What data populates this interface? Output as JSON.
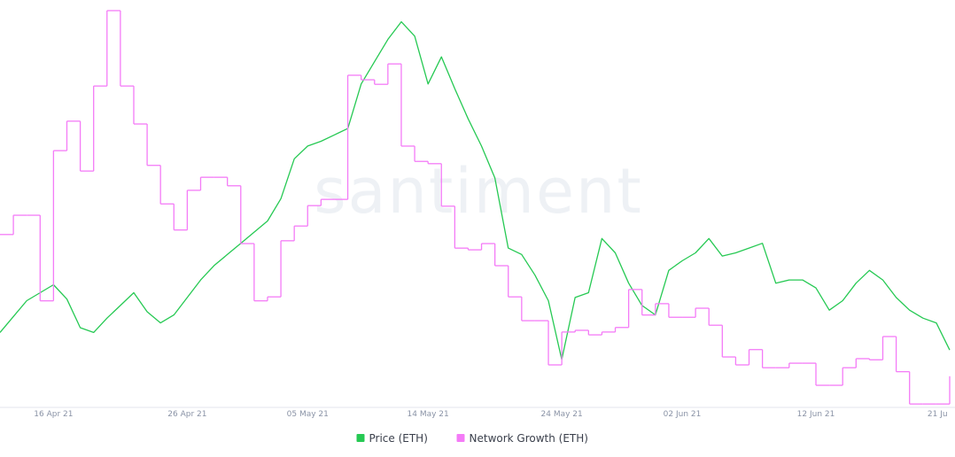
{
  "chart_data": {
    "type": "line",
    "watermark": "santiment",
    "categories": [
      null,
      null,
      null,
      null,
      "16 Apr 21",
      null,
      null,
      null,
      null,
      null,
      null,
      null,
      null,
      null,
      "26 Apr 21",
      null,
      null,
      null,
      null,
      null,
      null,
      null,
      null,
      "05 May 21",
      null,
      null,
      null,
      null,
      null,
      null,
      null,
      null,
      "14 May 21",
      null,
      null,
      null,
      null,
      null,
      null,
      null,
      null,
      null,
      "24 May 21",
      null,
      null,
      null,
      null,
      null,
      null,
      null,
      null,
      "02 Jun 21",
      null,
      null,
      null,
      null,
      null,
      null,
      null,
      null,
      null,
      "12 Jun 21",
      null,
      null,
      null,
      null,
      null,
      null,
      null,
      null,
      "21 Ju",
      null
    ],
    "series": [
      {
        "name": "Price (ETH)",
        "color": "#26c953",
        "style": "line",
        "values": [
          2150,
          2250,
          2350,
          2400,
          2450,
          2360,
          2180,
          2150,
          2240,
          2320,
          2400,
          2280,
          2210,
          2260,
          2370,
          2480,
          2570,
          2640,
          2710,
          2780,
          2850,
          2990,
          3240,
          3320,
          3350,
          3390,
          3430,
          3710,
          3850,
          3990,
          4100,
          4010,
          3710,
          3880,
          3680,
          3490,
          3320,
          3120,
          2680,
          2640,
          2510,
          2350,
          1980,
          2370,
          2400,
          2740,
          2650,
          2460,
          2320,
          2260,
          2540,
          2600,
          2650,
          2740,
          2630,
          2650,
          2680,
          2710,
          2460,
          2480,
          2480,
          2430,
          2290,
          2350,
          2460,
          2540,
          2480,
          2370,
          2290,
          2240,
          2210,
          2040
        ]
      },
      {
        "name": "Network Growth (ETH)",
        "color": "#f47bf7",
        "style": "step",
        "axis": "y2",
        "values": [
          5050,
          5390,
          5390,
          3880,
          6530,
          7050,
          6170,
          7670,
          9000,
          7670,
          7000,
          6270,
          5590,
          5130,
          5830,
          6060,
          6060,
          5910,
          4890,
          3880,
          3950,
          4940,
          5200,
          5560,
          5670,
          5670,
          7860,
          7780,
          7700,
          8060,
          6610,
          6340,
          6300,
          5550,
          4810,
          4780,
          4890,
          4500,
          3950,
          3530,
          3530,
          2750,
          3330,
          3360,
          3280,
          3330,
          3410,
          4080,
          3630,
          3830,
          3590,
          3590,
          3750,
          3450,
          2890,
          2750,
          3020,
          2700,
          2700,
          2780,
          2780,
          2390,
          2390,
          2700,
          2860,
          2840,
          3250,
          2630,
          2060,
          2060,
          2060,
          2550
        ]
      }
    ],
    "ylim": [
      1680,
      4170
    ],
    "y2lim": [
      2000,
      9000
    ],
    "legend": "bottom"
  }
}
